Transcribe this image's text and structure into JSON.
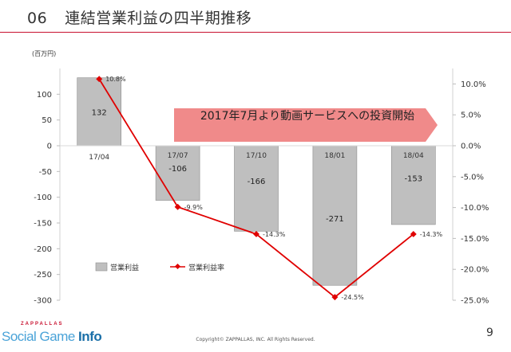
{
  "header": {
    "number": "06",
    "title": "連結営業利益の四半期推移"
  },
  "unit_label": "(百万円)",
  "banner": {
    "text": "2017年7月より動画サービスへの投資開始"
  },
  "footer": {
    "copyright": "Copyright© ZAPPALLAS, INC. All Rights Reserved.",
    "page": "9"
  },
  "logo": {
    "brand": "ZAPPALLAS",
    "main": "Social Game ",
    "accent": "Info"
  },
  "colors": {
    "bar": "#bfbfbf",
    "bar_stroke": "#8c8c8c",
    "line": "#e00000",
    "banner": "#f08a8a",
    "title_rule": "#c8102e"
  },
  "chart_data": {
    "type": "bar",
    "categories": [
      "17/04",
      "17/07",
      "17/10",
      "18/01",
      "18/04"
    ],
    "series": [
      {
        "name": "営業利益",
        "type": "bar",
        "axis": "left",
        "values": [
          132,
          -106,
          -166,
          -271,
          -153
        ],
        "labels": [
          "132",
          "-106",
          "-166",
          "-271",
          "-153"
        ]
      },
      {
        "name": "営業利益率",
        "type": "line",
        "axis": "right",
        "values": [
          10.8,
          -9.9,
          -14.3,
          -24.5,
          -14.3
        ],
        "labels": [
          "10.8%",
          "-9.9%",
          "-14.3%",
          "-24.5%",
          "-14.3%"
        ]
      }
    ],
    "y_left": {
      "ylim": [
        -300,
        150
      ],
      "ticks": [
        100,
        50,
        0,
        -50,
        -100,
        -150,
        -200,
        -250,
        -300
      ],
      "tick_labels": [
        "100",
        "50",
        "0",
        "-50",
        "-100",
        "-150",
        "-200",
        "-250",
        "-300"
      ]
    },
    "y_right": {
      "ylim": [
        -25,
        12.5
      ],
      "ticks": [
        10,
        5,
        0,
        -5,
        -10,
        -15,
        -20,
        -25
      ],
      "tick_labels": [
        "10.0%",
        "5.0%",
        "0.0%",
        "-5.0%",
        "-10.0%",
        "-15.0%",
        "-20.0%",
        "-25.0%"
      ]
    },
    "legend_position": "bottom-left",
    "grid": false
  }
}
